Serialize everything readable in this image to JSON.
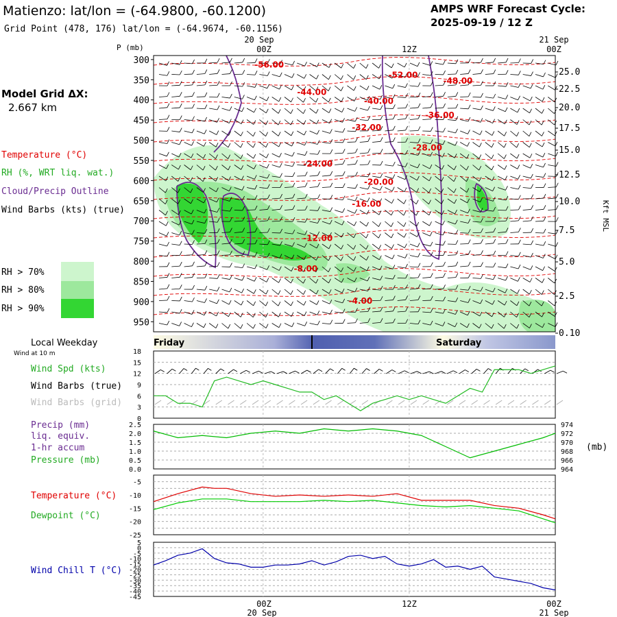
{
  "header": {
    "station_title": "Matienzo:  lat/lon = (-64.9800, -60.1200)",
    "grid_point": "Grid Point (478, 176) lat/lon = (-64.9674, -60.1156)",
    "cycle_label": "AMPS WRF Forecast Cycle:",
    "cycle_value": "2025-09-19 / 12  Z"
  },
  "sidebar": {
    "model_grid_label": "Model Grid ΔX:",
    "model_grid_value": "2.667 km",
    "legend_temperature": "Temperature (°C)",
    "legend_rh": "RH (%, WRT liq. wat.)",
    "legend_cloud": "Cloud/Precip Outline",
    "legend_wind": "Wind Barbs (kts) (true)",
    "rh_levels": [
      {
        "label": "RH > 70%",
        "color": "#cdf5cd"
      },
      {
        "label": "RH > 80%",
        "color": "#9de89d"
      },
      {
        "label": "RH > 90%",
        "color": "#33d633"
      }
    ]
  },
  "time_axis": {
    "top_dates": [
      "20 Sep",
      "21 Sep"
    ],
    "labels": [
      "00Z",
      "12Z",
      "00Z"
    ],
    "bottom_dates": [
      "20 Sep",
      "21 Sep"
    ]
  },
  "weekday_bar": {
    "title": "Local Weekday",
    "wind_note": "Wind at 10 m",
    "day1": "Friday",
    "day2": "Saturday"
  },
  "colors": {
    "temperature": "#e00000",
    "rh_green": "#33cc33",
    "cloud_outline": "#6a2c91",
    "wind": "#000000",
    "wind_grid": "#aaaaaa",
    "precip": "#6a2c91",
    "pressure": "#00bb00",
    "dewpoint": "#00cc00",
    "wind_chill": "#0000aa"
  },
  "chart_data": [
    {
      "type": "heatmap",
      "id": "cross-section",
      "ylabel": "P (mb)",
      "ylabel_right": "Kft MSL",
      "pressure_ticks": [
        "300",
        "350",
        "400",
        "450",
        "500",
        "550",
        "600",
        "650",
        "700",
        "750",
        "800",
        "850",
        "900",
        "950"
      ],
      "height_ticks": [
        "25.0",
        "22.5",
        "20.0",
        "17.5",
        "15.0",
        "12.5",
        "10.0",
        "7.5",
        "5.0",
        "2.5",
        "0.10"
      ],
      "temperature_contours": [
        {
          "label": "-56.00",
          "x_hr": 9.5,
          "p": 320
        },
        {
          "label": "-52.00",
          "x_hr": 20.5,
          "p": 345
        },
        {
          "label": "-48.00",
          "x_hr": 25,
          "p": 360
        },
        {
          "label": "-44.00",
          "x_hr": 13,
          "p": 388
        },
        {
          "label": "-40.00",
          "x_hr": 18.5,
          "p": 410
        },
        {
          "label": "-36.00",
          "x_hr": 23.5,
          "p": 445
        },
        {
          "label": "-32.00",
          "x_hr": 17.5,
          "p": 475
        },
        {
          "label": "-28.00",
          "x_hr": 22.5,
          "p": 525
        },
        {
          "label": "-24.00",
          "x_hr": 13.5,
          "p": 565
        },
        {
          "label": "-20.00",
          "x_hr": 18.5,
          "p": 610
        },
        {
          "label": "-16.00",
          "x_hr": 17.5,
          "p": 665
        },
        {
          "label": "-12.00",
          "x_hr": 13.5,
          "p": 750
        },
        {
          "label": "-8.00",
          "x_hr": 12.5,
          "p": 825
        },
        {
          "label": "-4.00",
          "x_hr": 17,
          "p": 905
        }
      ]
    },
    {
      "type": "line",
      "id": "wind-speed",
      "ylim": [
        0,
        18
      ],
      "yticks": [
        "0",
        "3",
        "6",
        "9",
        "12",
        "15",
        "18"
      ],
      "series": [
        {
          "name": "Wind Spd (kts)",
          "x": [
            0,
            1,
            2,
            3,
            4,
            5,
            6,
            7,
            8,
            9,
            10,
            11,
            12,
            13,
            14,
            15,
            16,
            17,
            18,
            19,
            20,
            21,
            22,
            23,
            24,
            25,
            26,
            27,
            28,
            29,
            30,
            31,
            32,
            33
          ],
          "values": [
            6,
            6,
            4,
            4,
            3,
            10,
            11,
            10,
            9,
            10,
            9,
            8,
            7,
            7,
            5,
            6,
            4,
            2,
            4,
            5,
            6,
            5,
            6,
            5,
            4,
            6,
            8,
            7,
            13,
            13,
            13,
            12,
            13,
            14
          ]
        }
      ]
    },
    {
      "type": "line",
      "id": "precip-pressure",
      "yticks_left": [
        "0.0",
        "0.5",
        "1.0",
        "1.5",
        "2.0",
        "2.5"
      ],
      "yticks_right": [
        "964",
        "966",
        "968",
        "970",
        "972",
        "974"
      ],
      "series": [
        {
          "name": "Pressure (mb)",
          "x": [
            0,
            2,
            4,
            6,
            8,
            10,
            12,
            14,
            16,
            18,
            20,
            22,
            24,
            26,
            28,
            30,
            32,
            33
          ],
          "values": [
            972.5,
            971,
            971.5,
            971,
            972,
            972.5,
            972,
            973,
            972.5,
            973,
            972.5,
            971.5,
            969,
            966.5,
            968,
            969.5,
            971,
            972
          ]
        }
      ]
    },
    {
      "type": "line",
      "id": "temperature-dewpoint",
      "ylim": [
        -25,
        -5
      ],
      "yticks": [
        "-5",
        "-10",
        "-15",
        "-20",
        "-25"
      ],
      "series": [
        {
          "name": "Temperature (°C)",
          "x": [
            0,
            2,
            4,
            5,
            6,
            8,
            10,
            12,
            14,
            16,
            18,
            20,
            22,
            24,
            26,
            28,
            30,
            32,
            33
          ],
          "values": [
            -12.5,
            -9.5,
            -7,
            -7.5,
            -7.5,
            -9.5,
            -10.5,
            -10,
            -10.5,
            -10,
            -10.5,
            -9.5,
            -12,
            -12,
            -12,
            -14,
            -15,
            -17.5,
            -19
          ]
        },
        {
          "name": "Dewpoint (°C)",
          "x": [
            0,
            2,
            4,
            6,
            8,
            10,
            12,
            14,
            16,
            18,
            20,
            22,
            24,
            26,
            28,
            30,
            32,
            33
          ],
          "values": [
            -15.5,
            -13,
            -11.5,
            -11.5,
            -12.5,
            -12.5,
            -12.5,
            -12,
            -12.5,
            -12,
            -13,
            -14,
            -14.5,
            -14,
            -15,
            -16,
            -19,
            -20.5
          ]
        }
      ]
    },
    {
      "type": "line",
      "id": "wind-chill",
      "ylim": [
        -45,
        5
      ],
      "yticks": [
        "5",
        "0",
        "-5",
        "-10",
        "-15",
        "-20",
        "-25",
        "-30",
        "-35",
        "-40",
        "-45"
      ],
      "series": [
        {
          "name": "Wind Chill T (°C)",
          "x": [
            0,
            1,
            2,
            3,
            4,
            5,
            6,
            7,
            8,
            9,
            10,
            11,
            12,
            13,
            14,
            15,
            16,
            17,
            18,
            19,
            20,
            21,
            22,
            23,
            24,
            25,
            26,
            27,
            28,
            29,
            30,
            31,
            32,
            33
          ],
          "values": [
            -16,
            -12,
            -7,
            -5,
            -1,
            -10,
            -14,
            -15,
            -18,
            -18,
            -16,
            -16,
            -15,
            -12,
            -16,
            -13,
            -8,
            -7,
            -10,
            -8,
            -15,
            -17,
            -15,
            -11,
            -18,
            -17,
            -20,
            -17,
            -27,
            -29,
            -31,
            -33,
            -37,
            -39
          ]
        }
      ]
    }
  ],
  "panel_labels": {
    "wind_spd": "Wind Spd (kts)",
    "wind_barbs_true": "Wind Barbs (true)",
    "wind_barbs_grid": "Wind Barbs (grid)",
    "precip": "Precip (mm)",
    "precip_liq": "liq. equiv.",
    "precip_accum": "1-hr accum",
    "pressure": "Pressure (mb)",
    "pressure_unit": "(mb)",
    "temperature": "Temperature (°C)",
    "dewpoint": "Dewpoint (°C)",
    "wind_chill": "Wind Chill T (°C)"
  }
}
